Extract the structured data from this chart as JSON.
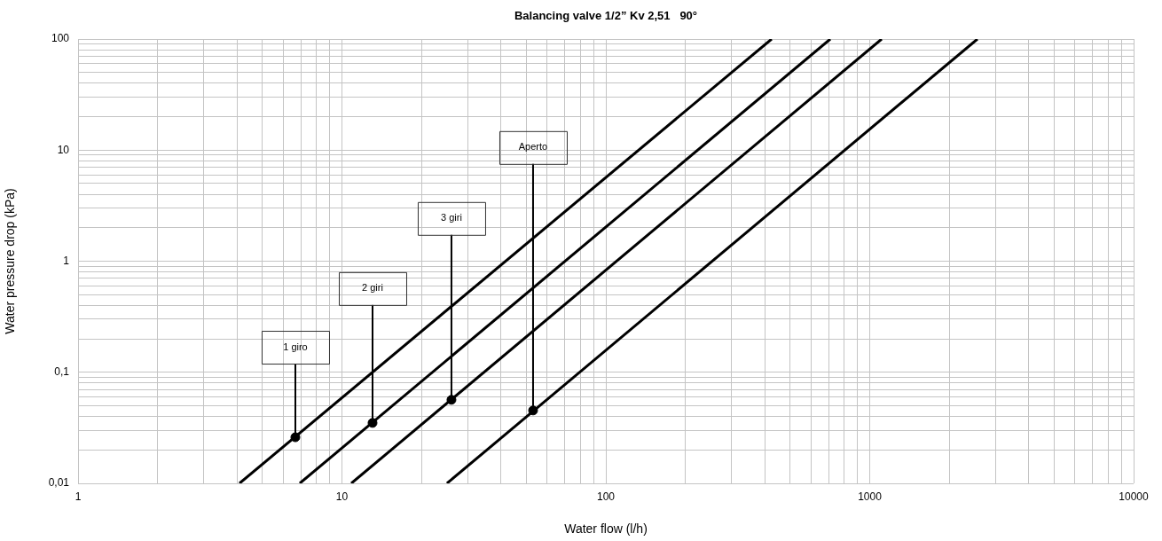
{
  "chart_data": {
    "type": "line",
    "title": "Balancing valve 1/2” Kv 2,51   90°",
    "xlabel": "Water flow (l/h)",
    "ylabel": "Water pressure drop (kPa)",
    "log": "xy",
    "grid": true,
    "marker": "none",
    "line_style": "solid",
    "xlim": [
      1,
      10000
    ],
    "ylim": [
      0.01,
      100
    ],
    "xticks": [
      1,
      {
        "value": 2,
        "label": null
      },
      {
        "value": 3,
        "label": null
      },
      {
        "value": 4,
        "label": null
      },
      {
        "value": 5,
        "label": null
      },
      {
        "value": 6,
        "label": null
      },
      {
        "value": 7,
        "label": null
      },
      {
        "value": 8,
        "label": null
      },
      {
        "value": 9,
        "label": null
      },
      10,
      {
        "value": 20,
        "label": null
      },
      {
        "value": 30,
        "label": null
      },
      {
        "value": 40,
        "label": null
      },
      {
        "value": 50,
        "label": null
      },
      {
        "value": 60,
        "label": null
      },
      {
        "value": 70,
        "label": null
      },
      {
        "value": 80,
        "label": null
      },
      {
        "value": 90,
        "label": null
      },
      100,
      {
        "value": 200,
        "label": null
      },
      {
        "value": 300,
        "label": null
      },
      {
        "value": 400,
        "label": null
      },
      {
        "value": 500,
        "label": null
      },
      {
        "value": 600,
        "label": null
      },
      {
        "value": 700,
        "label": null
      },
      {
        "value": 800,
        "label": null
      },
      {
        "value": 900,
        "label": null
      },
      1000,
      {
        "value": 2000,
        "label": null
      },
      {
        "value": 3000,
        "label": null
      },
      {
        "value": 4000,
        "label": null
      },
      {
        "value": 5000,
        "label": null
      },
      {
        "value": 6000,
        "label": null
      },
      {
        "value": 7000,
        "label": null
      },
      {
        "value": 8000,
        "label": null
      },
      {
        "value": 9000,
        "label": null
      },
      10000
    ],
    "yticks": [
      {
        "value": 0.01,
        "label": "0,01"
      },
      {
        "value": 0.02,
        "label": null
      },
      {
        "value": 0.03,
        "label": null
      },
      {
        "value": 0.04,
        "label": null
      },
      {
        "value": 0.05,
        "label": null
      },
      {
        "value": 0.06,
        "label": null
      },
      {
        "value": 0.07,
        "label": null
      },
      {
        "value": 0.08,
        "label": null
      },
      {
        "value": 0.09,
        "label": null
      },
      {
        "value": 0.1,
        "label": "0,1"
      },
      {
        "value": 0.2,
        "label": null
      },
      {
        "value": 0.3,
        "label": null
      },
      {
        "value": 0.4,
        "label": null
      },
      {
        "value": 0.5,
        "label": null
      },
      {
        "value": 0.6,
        "label": null
      },
      {
        "value": 0.7,
        "label": null
      },
      {
        "value": 0.8,
        "label": null
      },
      {
        "value": 0.9,
        "label": null
      },
      1,
      {
        "value": 2,
        "label": null
      },
      {
        "value": 3,
        "label": null
      },
      {
        "value": 4,
        "label": null
      },
      {
        "value": 5,
        "label": null
      },
      {
        "value": 6,
        "label": null
      },
      {
        "value": 7,
        "label": null
      },
      {
        "value": 8,
        "label": null
      },
      {
        "value": 9,
        "label": null
      },
      10,
      {
        "value": 20,
        "label": null
      },
      {
        "value": 30,
        "label": null
      },
      {
        "value": 40,
        "label": null
      },
      {
        "value": 50,
        "label": null
      },
      {
        "value": 60,
        "label": null
      },
      {
        "value": 70,
        "label": null
      },
      {
        "value": 80,
        "label": null
      },
      {
        "value": 90,
        "label": null
      },
      100
    ],
    "series": [
      {
        "color": "#000000",
        "x": [
          4.09,
          425
        ],
        "values": [
          0.01,
          100
        ]
      },
      {
        "color": "#000000",
        "x": [
          6.92,
          709
        ],
        "values": [
          0.01,
          100
        ]
      },
      {
        "color": "#000000",
        "x": [
          10.85,
          1110
        ],
        "values": [
          0.01,
          100
        ]
      },
      {
        "color": "#000000",
        "x": [
          25,
          2560
        ],
        "values": [
          0.01,
          100
        ]
      },
      {
        "type": "scatter",
        "color": "#000000",
        "marker": "circle",
        "x": [
          6.66,
          13.06,
          26,
          53
        ],
        "values": [
          0.026,
          0.035,
          0.0565,
          0.0453
        ]
      }
    ],
    "annotations": [
      {
        "text": "1 giro",
        "x": 6.66,
        "y": 0.026
      },
      {
        "text": "2 giri",
        "x": 13.06,
        "y": 0.035
      },
      {
        "text": "3 giri",
        "x": 26,
        "y": 0.0565
      },
      {
        "text": "Aperto",
        "x": 53,
        "y": 0.0453
      }
    ]
  }
}
